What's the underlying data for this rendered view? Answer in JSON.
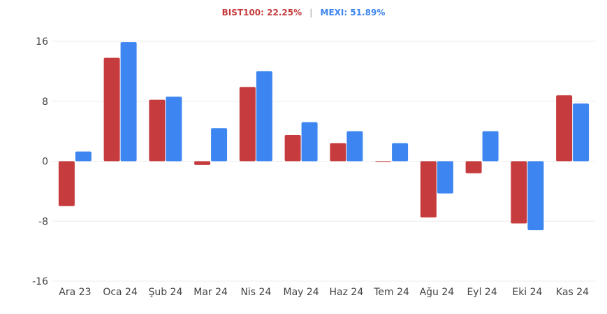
{
  "legend": {
    "bist_label": "BIST100: 22.25%",
    "separator": "|",
    "mexi_label": "MEXI: 51.89%"
  },
  "colors": {
    "bist": "#c63c3e",
    "mexi": "#3d85f0",
    "grid": "#ececec",
    "tick": "#444444"
  },
  "chart_data": {
    "type": "bar",
    "categories": [
      "Ara 23",
      "Oca 24",
      "Şub 24",
      "Mar 24",
      "Nis 24",
      "May 24",
      "Haz 24",
      "Tem 24",
      "Ağu 24",
      "Eyl 24",
      "Eki 24",
      "Kas 24"
    ],
    "series": [
      {
        "name": "BIST100",
        "values": [
          -6.0,
          13.8,
          8.2,
          -0.5,
          9.9,
          3.5,
          2.4,
          -0.1,
          -7.5,
          -1.6,
          -8.3,
          8.8
        ]
      },
      {
        "name": "MEXI",
        "values": [
          1.3,
          15.9,
          8.6,
          4.4,
          12.0,
          5.2,
          4.0,
          2.4,
          -4.3,
          4.0,
          -9.2,
          7.7
        ]
      }
    ],
    "yticks": [
      "16",
      "8",
      "0",
      "-8",
      "-16"
    ],
    "ylim": [
      -16,
      16
    ],
    "grid": true,
    "legend": "top-center"
  }
}
